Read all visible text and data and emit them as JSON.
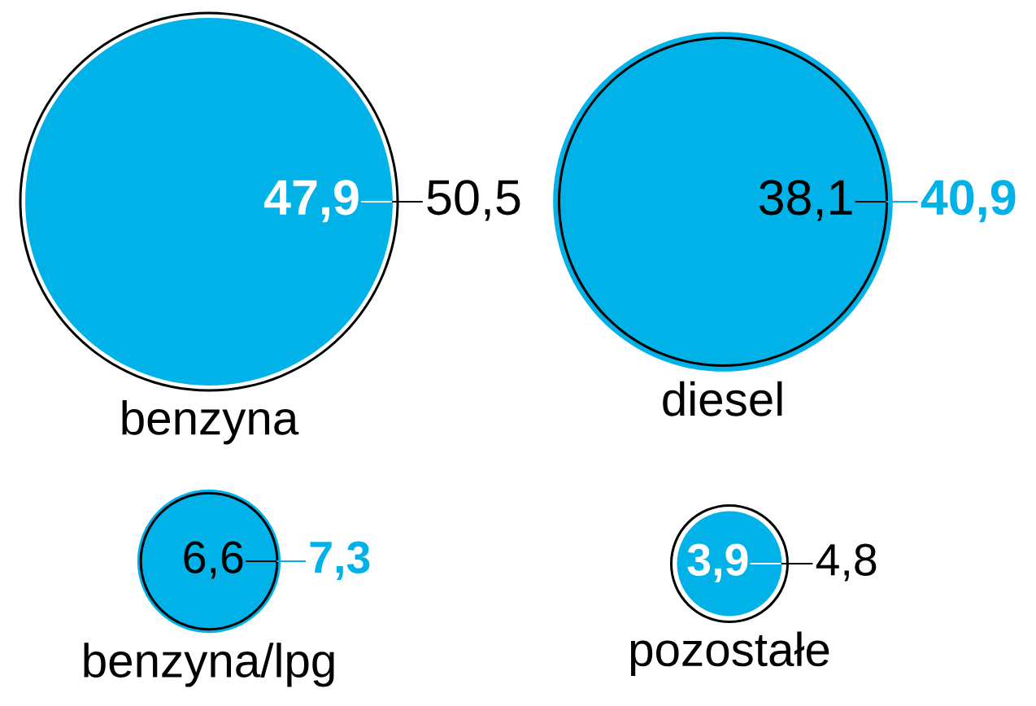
{
  "chart_data": {
    "type": "other",
    "categories": [
      "benzyna",
      "diesel",
      "benzyna/lpg",
      "pozostałe"
    ],
    "series": [
      {
        "color": "#00b2e8",
        "values": [
          47.9,
          40.9,
          7.3,
          3.9
        ],
        "value_labels": [
          "47,9",
          "40,9",
          "7,3",
          "3,9"
        ]
      },
      {
        "color": "#000000",
        "values": [
          50.5,
          38.1,
          6.6,
          4.8
        ],
        "value_labels": [
          "50,5",
          "38,1",
          "6,6",
          "4,8"
        ]
      }
    ]
  }
}
